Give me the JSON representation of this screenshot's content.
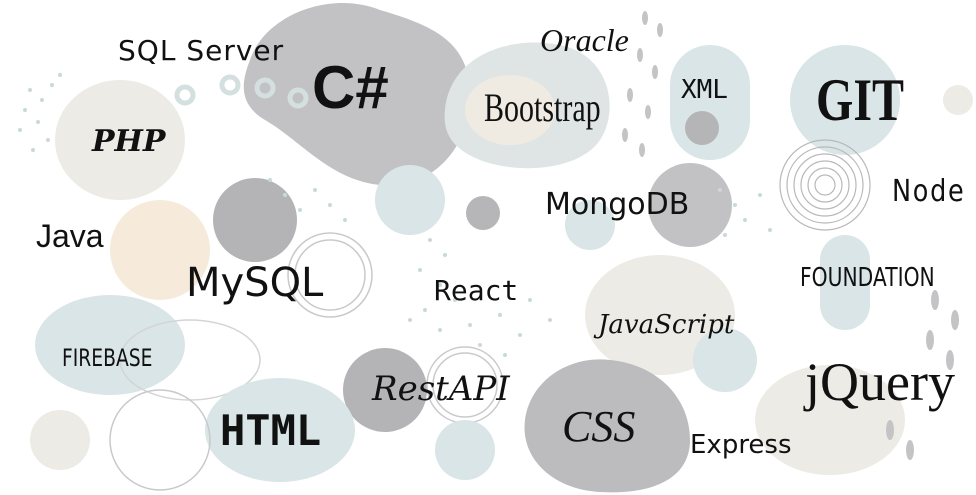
{
  "palette": {
    "grey": "#bdbdbf",
    "dark_grey": "#a9a9ab",
    "teal": "#d9e5e6",
    "cream": "#ecebe5",
    "peach": "#f6eadb",
    "text": "#111111"
  },
  "words": [
    {
      "id": "sql-server",
      "text": "SQL Server"
    },
    {
      "id": "csharp",
      "text": "C#"
    },
    {
      "id": "oracle",
      "text": "Oracle"
    },
    {
      "id": "php",
      "text": "PHP"
    },
    {
      "id": "bootstrap",
      "text": "Bootstrap"
    },
    {
      "id": "xml",
      "text": "XML"
    },
    {
      "id": "git",
      "text": "GIT"
    },
    {
      "id": "node",
      "text": "Node"
    },
    {
      "id": "mongodb",
      "text": "MongoDB"
    },
    {
      "id": "java",
      "text": "Java"
    },
    {
      "id": "mysql",
      "text": "MySQL"
    },
    {
      "id": "react",
      "text": "React"
    },
    {
      "id": "foundation",
      "text": "FOUNDATION"
    },
    {
      "id": "javascript",
      "text": "JavaScript"
    },
    {
      "id": "firebase",
      "text": "FIREBASE"
    },
    {
      "id": "restapi",
      "text": "RestAPI"
    },
    {
      "id": "jquery",
      "text": "jQuery"
    },
    {
      "id": "html",
      "text": "HTML"
    },
    {
      "id": "css",
      "text": "CSS"
    },
    {
      "id": "express",
      "text": "Express"
    }
  ]
}
